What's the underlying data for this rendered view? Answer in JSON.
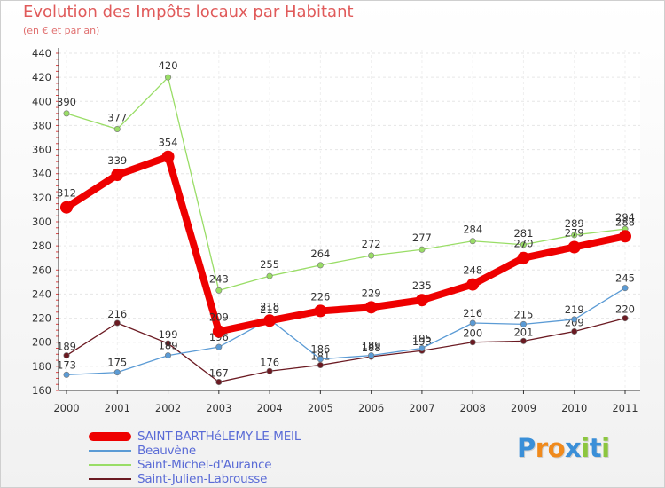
{
  "chart_data": {
    "type": "line",
    "title": "Evolution des Impôts locaux par Habitant",
    "subtitle": "(en € et par an)",
    "xlabel": "",
    "ylabel": "",
    "ylim": [
      160,
      440
    ],
    "yticks": [
      160,
      180,
      200,
      220,
      240,
      260,
      280,
      300,
      320,
      340,
      360,
      380,
      400,
      420,
      440
    ],
    "categories": [
      "2000",
      "2001",
      "2002",
      "2003",
      "2004",
      "2005",
      "2006",
      "2007",
      "2008",
      "2009",
      "2010",
      "2011"
    ],
    "legend_position": "bottom-left",
    "series": [
      {
        "name": "Saint-Julien-Labrousse",
        "color": "#6b1a22",
        "values": [
          189,
          216,
          199,
          167,
          176,
          181,
          188,
          193,
          200,
          201,
          209,
          220
        ],
        "labels": [
          "189",
          "216",
          "199",
          "167",
          "176",
          "181",
          "188",
          "193",
          "200",
          "201",
          "209",
          "220"
        ]
      },
      {
        "name": "Saint-Michel-d'Aurance",
        "color": "#99dd66",
        "values": [
          390,
          377,
          420,
          243,
          255,
          264,
          272,
          277,
          284,
          281,
          289,
          294
        ],
        "labels": [
          "390",
          "377",
          "420",
          "243",
          "255",
          "264",
          "272",
          "277",
          "284",
          "281",
          "289",
          "294"
        ]
      },
      {
        "name": "Beauvène",
        "color": "#5b9bd5",
        "values": [
          173,
          175,
          189,
          196,
          219,
          186,
          189,
          195,
          216,
          215,
          219,
          245
        ],
        "labels": [
          "173",
          "175",
          "189",
          "196",
          "219",
          "186",
          "189",
          "195",
          "216",
          "215",
          "219",
          "245"
        ]
      },
      {
        "name": "SAINT-BARTHéLEMY-LE-MEIL",
        "color": "#ee0000",
        "values": [
          312,
          339,
          354,
          209,
          218,
          226,
          229,
          235,
          248,
          270,
          279,
          288
        ],
        "labels": [
          "312",
          "339",
          "354",
          "209",
          "218",
          "226",
          "229",
          "235",
          "248",
          "270",
          "279",
          "288"
        ]
      }
    ]
  },
  "legend": [
    {
      "label": "SAINT-BARTHéLEMY-LE-MEIL",
      "color": "#ee0000",
      "weight": "thick"
    },
    {
      "label": "Beauvène",
      "color": "#5b9bd5",
      "weight": "thin"
    },
    {
      "label": "Saint-Michel-d'Aurance",
      "color": "#99dd66",
      "weight": "thin"
    },
    {
      "label": "Saint-Julien-Labrousse",
      "color": "#6b1a22",
      "weight": "thin"
    }
  ],
  "logo": {
    "letters": [
      "P",
      "r",
      "o",
      "x",
      "i",
      "t",
      "i"
    ],
    "colors": [
      "#3a8fd8",
      "#f08a1c",
      "#f08a1c",
      "#3a8fd8",
      "#8cc63f",
      "#3a8fd8",
      "#8cc63f"
    ]
  }
}
